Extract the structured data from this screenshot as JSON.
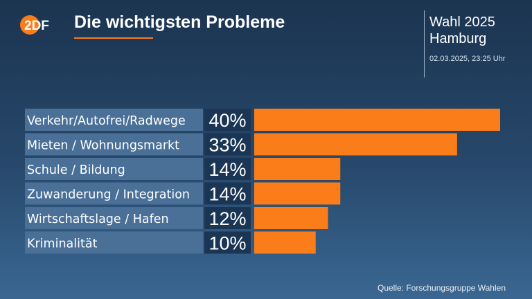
{
  "header": {
    "logo_text": "2DF",
    "title": "Die wichtigsten Probleme",
    "event_line1": "Wahl 2025",
    "event_line2": "Hamburg",
    "timestamp": "02.03.2025, 23:25 Uhr"
  },
  "footer": {
    "source": "Quelle: Forschungsgruppe Wahlen"
  },
  "colors": {
    "accent": "#fa7d19",
    "label_box": "#4a7098",
    "value_box": "#1b3654"
  },
  "chart_data": {
    "type": "bar",
    "orientation": "horizontal",
    "categories": [
      "Verkehr/Autofrei/Radwege",
      "Mieten / Wohnungsmarkt",
      "Schule / Bildung",
      "Zuwanderung / Integration",
      "Wirtschaftslage / Hafen",
      "Kriminalität"
    ],
    "values": [
      40,
      33,
      14,
      14,
      12,
      10
    ],
    "value_labels": [
      "40%",
      "33%",
      "14%",
      "14%",
      "12%",
      "10%"
    ],
    "unit": "%"
  }
}
